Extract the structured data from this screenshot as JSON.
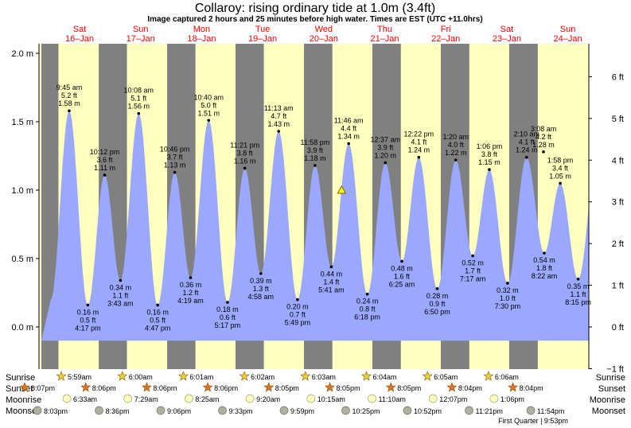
{
  "chart_data": {
    "type": "area",
    "title": "Collaroy: rising  ordinary tide at 1.0m (3.4ft)",
    "subtitle": "Image captured 2 hours and 25 minutes before high water. Times are EST (UTC +11.0hrs)",
    "ylabel_left_unit": "m",
    "ylabel_right_unit": "ft",
    "ylim_m": [
      -0.25,
      2.1
    ],
    "left_ticks": [
      "2.0 m",
      "1.5 m",
      "1.0 m",
      "0.5 m",
      "0.0 m"
    ],
    "left_tick_values": [
      2.0,
      1.5,
      1.0,
      0.5,
      0.0
    ],
    "right_ticks": [
      "6 ft",
      "5 ft",
      "4 ft",
      "3 ft",
      "2 ft",
      "1 ft",
      "0 ft",
      "−1 ft"
    ],
    "right_tick_values": [
      6,
      5,
      4,
      3,
      2,
      1,
      0,
      -1
    ],
    "days": [
      {
        "dow": "Sat",
        "date": "16–Jan"
      },
      {
        "dow": "Sun",
        "date": "17–Jan"
      },
      {
        "dow": "Mon",
        "date": "18–Jan"
      },
      {
        "dow": "Tue",
        "date": "19–Jan"
      },
      {
        "dow": "Wed",
        "date": "20–Jan"
      },
      {
        "dow": "Thu",
        "date": "21–Jan"
      },
      {
        "dow": "Fri",
        "date": "22–Jan"
      },
      {
        "dow": "Sat",
        "date": "23–Jan"
      },
      {
        "dow": "Sun",
        "date": "24–Jan"
      }
    ],
    "night_bands_hours": [
      [
        0,
        5.98
      ],
      [
        20.12,
        30.0
      ],
      [
        44.1,
        54.02
      ],
      [
        68.1,
        78.03
      ],
      [
        92.1,
        102.05
      ],
      [
        116.08,
        126.07
      ],
      [
        140.08,
        150.08
      ],
      [
        164.07,
        174.1
      ]
    ],
    "hour_range": [
      -16,
      192
    ],
    "tides": [
      {
        "h": 9.75,
        "m": 1.58,
        "time": "9:45 am",
        "ft": "5.2 ft",
        "mtxt": "1.58 m",
        "type": "high"
      },
      {
        "h": 16.28,
        "m": 0.16,
        "time": "4:17 pm",
        "ft": "0.5 ft",
        "mtxt": "0.16 m",
        "type": "low"
      },
      {
        "h": 22.2,
        "m": 1.11,
        "time": "10:12 pm",
        "ft": "3.6 ft",
        "mtxt": "1.11 m",
        "type": "high"
      },
      {
        "h": 27.72,
        "m": 0.34,
        "time": "3:43 am",
        "ft": "1.1 ft",
        "mtxt": "0.34 m",
        "type": "low"
      },
      {
        "h": 34.13,
        "m": 1.56,
        "time": "10:08 am",
        "ft": "5.1 ft",
        "mtxt": "1.56 m",
        "type": "high"
      },
      {
        "h": 40.78,
        "m": 0.16,
        "time": "4:47 pm",
        "ft": "0.5 ft",
        "mtxt": "0.16 m",
        "type": "low"
      },
      {
        "h": 46.77,
        "m": 1.13,
        "time": "10:46 pm",
        "ft": "3.7 ft",
        "mtxt": "1.13 m",
        "type": "high"
      },
      {
        "h": 52.32,
        "m": 0.36,
        "time": "4:19 am",
        "ft": "1.2 ft",
        "mtxt": "0.36 m",
        "type": "low"
      },
      {
        "h": 58.67,
        "m": 1.51,
        "time": "10:40 am",
        "ft": "5.0 ft",
        "mtxt": "1.51 m",
        "type": "high"
      },
      {
        "h": 65.28,
        "m": 0.18,
        "time": "5:17 pm",
        "ft": "0.6 ft",
        "mtxt": "0.18 m",
        "type": "low"
      },
      {
        "h": 71.35,
        "m": 1.16,
        "time": "11:21 pm",
        "ft": "3.8 ft",
        "mtxt": "1.16 m",
        "type": "high"
      },
      {
        "h": 76.97,
        "m": 0.39,
        "time": "4:58 am",
        "ft": "1.3 ft",
        "mtxt": "0.39 m",
        "type": "low"
      },
      {
        "h": 83.22,
        "m": 1.43,
        "time": "11:13 am",
        "ft": "4.7 ft",
        "mtxt": "1.43 m",
        "type": "high"
      },
      {
        "h": 89.82,
        "m": 0.2,
        "time": "5:49 pm",
        "ft": "0.7 ft",
        "mtxt": "0.20 m",
        "type": "low"
      },
      {
        "h": 95.97,
        "m": 1.18,
        "time": "11:58 pm",
        "ft": "3.9 ft",
        "mtxt": "1.18 m",
        "type": "high"
      },
      {
        "h": 101.68,
        "m": 0.44,
        "time": "5:41 am",
        "ft": "1.4 ft",
        "mtxt": "0.44 m",
        "type": "low"
      },
      {
        "h": 107.77,
        "m": 1.34,
        "time": "11:46 am",
        "ft": "4.4 ft",
        "mtxt": "1.34 m",
        "type": "high"
      },
      {
        "h": 114.3,
        "m": 0.24,
        "time": "6:18 pm",
        "ft": "0.8 ft",
        "mtxt": "0.24 m",
        "type": "low"
      },
      {
        "h": 120.62,
        "m": 1.2,
        "time": "12:37 am",
        "ft": "3.9 ft",
        "mtxt": "1.20 m",
        "type": "high"
      },
      {
        "h": 126.42,
        "m": 0.48,
        "time": "6:25 am",
        "ft": "1.6 ft",
        "mtxt": "0.48 m",
        "type": "low"
      },
      {
        "h": 132.37,
        "m": 1.24,
        "time": "12:22 pm",
        "ft": "4.1 ft",
        "mtxt": "1.24 m",
        "type": "high"
      },
      {
        "h": 138.83,
        "m": 0.28,
        "time": "6:50 pm",
        "ft": "0.9 ft",
        "mtxt": "0.28 m",
        "type": "low"
      },
      {
        "h": 145.33,
        "m": 1.22,
        "time": "1:20 am",
        "ft": "4.0 ft",
        "mtxt": "1.22 m",
        "type": "high"
      },
      {
        "h": 151.28,
        "m": 0.52,
        "time": "7:17 am",
        "ft": "1.7 ft",
        "mtxt": "0.52 m",
        "type": "low"
      },
      {
        "h": 157.1,
        "m": 1.15,
        "time": "1:06 pm",
        "ft": "3.8 ft",
        "mtxt": "1.15 m",
        "type": "high"
      },
      {
        "h": 163.5,
        "m": 0.32,
        "time": "7:30 pm",
        "ft": "1.0 ft",
        "mtxt": "0.32 m",
        "type": "low"
      },
      {
        "h": 170.17,
        "m": 1.24,
        "time": "2:10 am",
        "ft": "4.1 ft",
        "mtxt": "1.24 m",
        "type": "high"
      },
      {
        "h": 176.37,
        "m": 0.54,
        "time": "8:22 am",
        "ft": "1.8 ft",
        "mtxt": "0.54 m",
        "type": "low"
      },
      {
        "h": 181.97,
        "m": 1.05,
        "time": "1:58 pm",
        "ft": "3.4 ft",
        "mtxt": "1.05 m",
        "type": "high"
      },
      {
        "h": 188.25,
        "m": 0.35,
        "time": "8:15 pm",
        "ft": "1.1 ft",
        "mtxt": "0.35 m",
        "type": "low"
      },
      {
        "h": 195.13,
        "m": 1.28,
        "time": "3:08 am",
        "ft": "4.2 ft",
        "mtxt": "1.28 m",
        "type": "high"
      }
    ],
    "current": {
      "h": 105.3,
      "m": 1.0
    },
    "colors": {
      "water": "#9aa9ff",
      "day": "#ffffc0",
      "night": "#808080",
      "sunrise_icon": "#e8d040",
      "sunset_icon": "#e07030",
      "moon_icon": "#ffffc0",
      "moonset_icon": "#b0b0a0",
      "day_label": "#ff0000"
    }
  },
  "rows": {
    "sunrise_label": "Sunrise",
    "sunset_label": "Sunset",
    "moonrise_label": "Moonrise",
    "moonset_label": "Moonset",
    "sunrise": [
      "5:59am",
      "6:00am",
      "6:01am",
      "6:02am",
      "6:03am",
      "6:04am",
      "6:05am",
      "6:06am"
    ],
    "sunset": [
      "8:07pm",
      "8:06pm",
      "8:06pm",
      "8:06pm",
      "8:05pm",
      "8:05pm",
      "8:05pm",
      "8:04pm",
      "8:04pm"
    ],
    "moonrise": [
      "6:33am",
      "7:29am",
      "8:25am",
      "9:20am",
      "10:15am",
      "11:10am",
      "12:07pm",
      "1:06pm"
    ],
    "moonset": [
      "8:03pm",
      "8:36pm",
      "9:06pm",
      "9:33pm",
      "9:59pm",
      "10:25pm",
      "10:52pm",
      "11:21pm",
      "11:54pm"
    ],
    "moon_phase": "First Quarter | 9:53pm"
  }
}
